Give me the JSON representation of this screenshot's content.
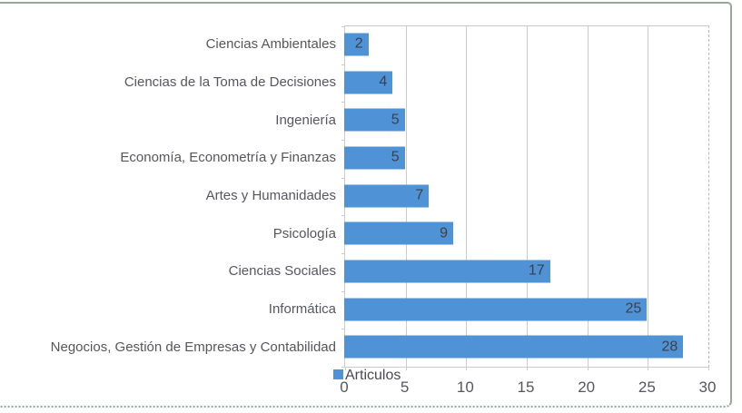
{
  "chart_data": {
    "type": "bar",
    "orientation": "horizontal",
    "categories": [
      "Ciencias Ambientales",
      "Ciencias de la Toma de Decisiones",
      "Ingeniería",
      "Economía, Econometría y Finanzas",
      "Artes y Humanidades",
      "Psicología",
      "Ciencias Sociales",
      "Informática",
      "Negocios, Gestión de Empresas y Contabilidad"
    ],
    "values": [
      2,
      4,
      5,
      5,
      7,
      9,
      17,
      25,
      28
    ],
    "title": "",
    "xlabel": "",
    "ylabel": "",
    "xlim": [
      0,
      30
    ],
    "x_ticks": [
      0,
      5,
      10,
      15,
      20,
      25,
      30
    ],
    "grid": true,
    "legend": {
      "label": "Articulos",
      "position": "bottom-left"
    },
    "colors": {
      "bar": "#4f92d5",
      "value_label": "#3f3f46",
      "axis_text": "#56565e",
      "gridline": "#c9cec9",
      "figure_border": "#96a89b"
    }
  }
}
